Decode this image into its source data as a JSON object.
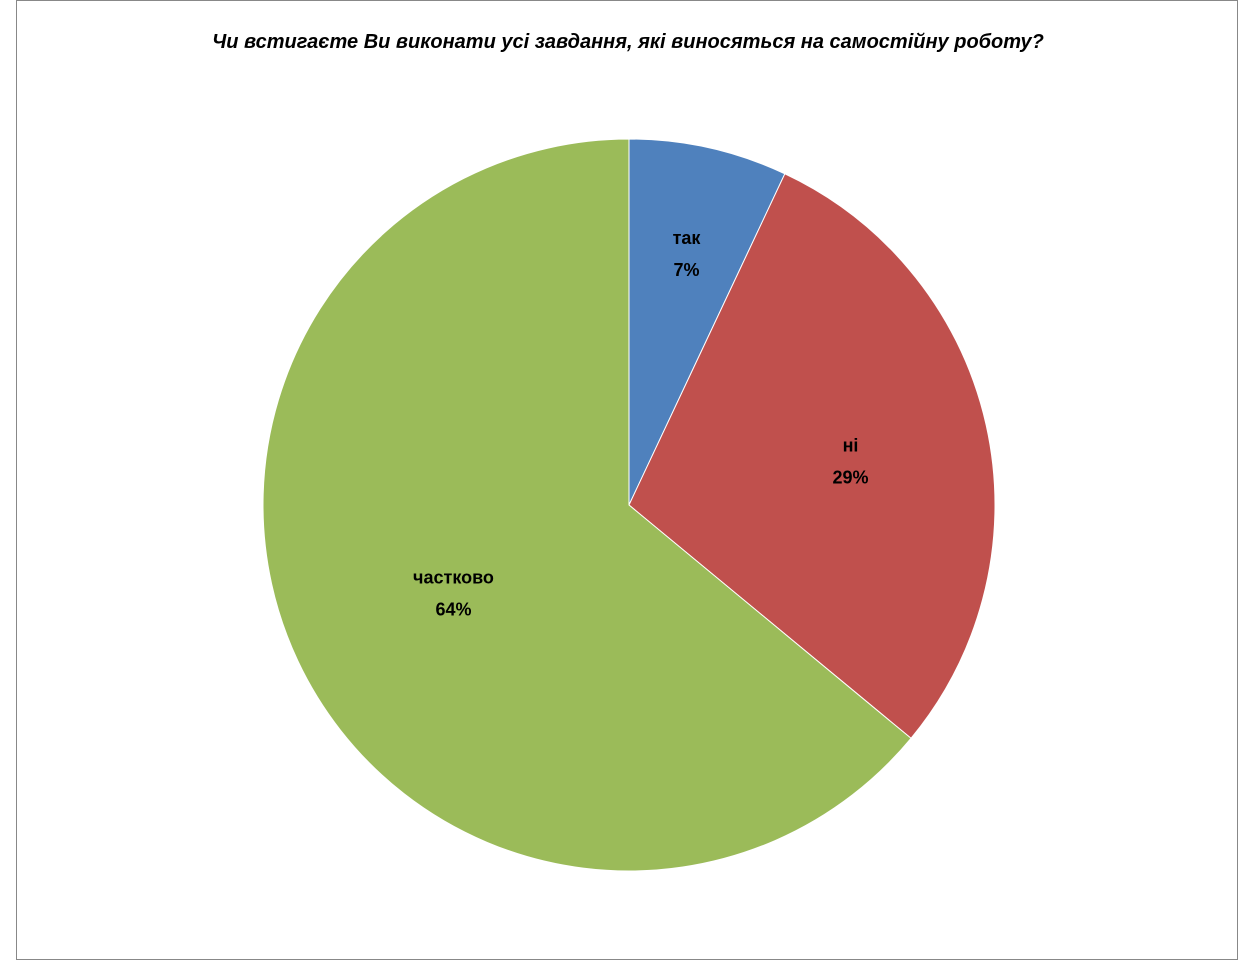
{
  "chart_data": {
    "type": "pie",
    "title": "Чи встигаєте Ви виконати усі завдання, які виносяться на самостійну роботу?",
    "start_angle_deg": 0,
    "direction": "clockwise",
    "slices": [
      {
        "label": "так",
        "value": 7,
        "percent_label": "7%",
        "color": "#4F81BD"
      },
      {
        "label": "ні",
        "value": 29,
        "percent_label": "29%",
        "color": "#C0504D"
      },
      {
        "label": "частково",
        "value": 64,
        "percent_label": "64%",
        "color": "#9BBB59"
      }
    ],
    "legend": "none",
    "data_labels": "inside"
  }
}
